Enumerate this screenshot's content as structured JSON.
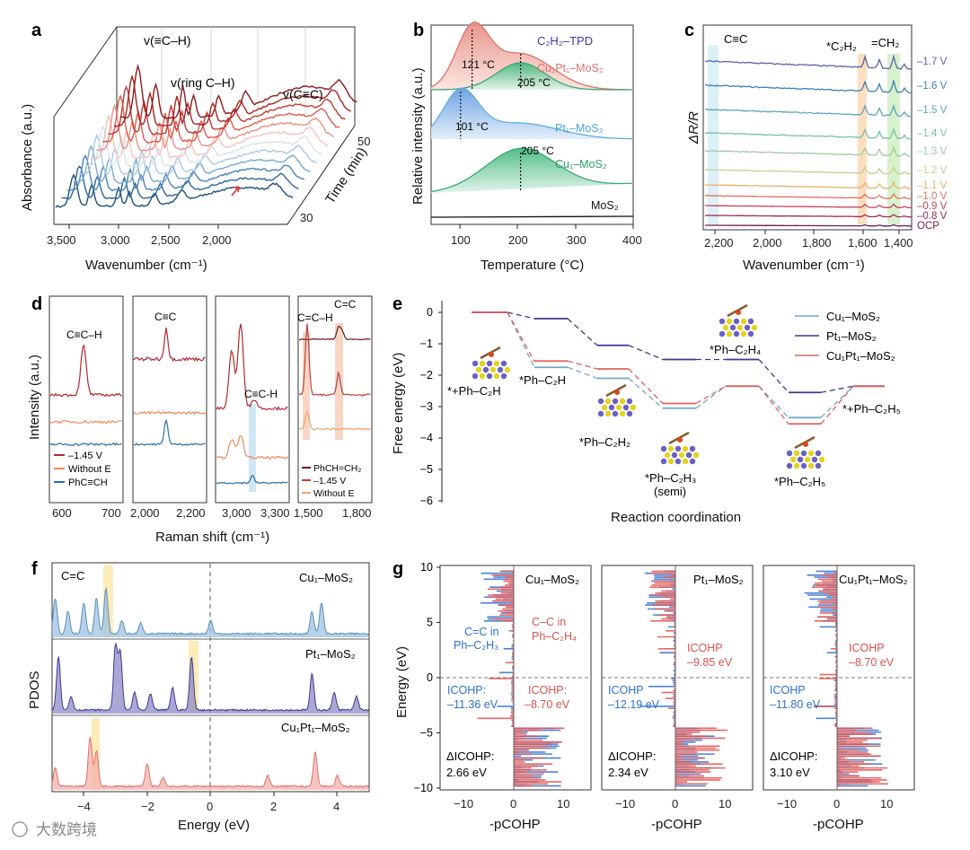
{
  "watermark": "大数跨境",
  "panels": {
    "a": {
      "letter": "a",
      "ylabel": "Absorbance (a.u.)",
      "xlabel": "Wavenumber (cm⁻¹)",
      "xticks": [
        "3,500",
        "3,000",
        "2,500",
        "2,000"
      ],
      "time_label": "Time (min)",
      "time_ticks": [
        "50",
        "30"
      ],
      "annotations": [
        "v(≡C–H)",
        "v(ring C–H)",
        "v(C≡C)"
      ]
    },
    "b": {
      "letter": "b",
      "title": "C₂H₂–TPD",
      "ylabel": "Relative intensity (a.u.)",
      "xlabel": "Temperature (°C)",
      "xticks": [
        "100",
        "200",
        "300",
        "400"
      ],
      "series_labels": [
        "Cu₁Pt₁–MoS₂",
        "Pt₁–MoS₂",
        "Cu₁–MoS₂",
        "MoS₂"
      ],
      "peak_labels": [
        "121 °C",
        "205 °C",
        "101 °C",
        "205 °C"
      ]
    },
    "c": {
      "letter": "c",
      "ylabel": "ΔR/R",
      "xlabel": "Wavenumber (cm⁻¹)",
      "xticks": [
        "2,200",
        "2,000",
        "1,800",
        "1,600",
        "1,400"
      ],
      "band_labels": [
        "C≡C",
        "*C₂H₂",
        "=CH₂"
      ],
      "potentials": [
        "–1.7 V",
        "–1.6 V",
        "–1.5 V",
        "–1.4 V",
        "–1.3 V",
        "–1.2 V",
        "–1.1 V",
        "–1.0 V",
        "–0.9 V",
        "–0.8 V",
        "OCP"
      ]
    },
    "d": {
      "letter": "d",
      "ylabel": "Intensity (a.u.)",
      "xlabel": "Raman shift (cm⁻¹)",
      "xticks1": [
        "600",
        "700"
      ],
      "xticks2": [
        "2,000",
        "2,200"
      ],
      "xticks3": [
        "3,000",
        "3,300"
      ],
      "xticks4": [
        "1,500",
        "1,800"
      ],
      "peak_labels": [
        "C≡C–H",
        "C≡C",
        "C≡C-H",
        "C=C–H",
        "C=C"
      ],
      "legend1": [
        "–1.45 V",
        "Without E",
        "PhC≡CH"
      ],
      "legend4": [
        "PhCH=CH₂",
        "–1.45 V",
        "Without E"
      ]
    },
    "e": {
      "letter": "e",
      "ylabel": "Free energy (eV)",
      "xlabel": "Reaction coordination",
      "yticks": [
        "0",
        "−1",
        "−2",
        "−3",
        "−4",
        "−5",
        "−6"
      ],
      "legend": [
        "Cu₁–MoS₂",
        "Pt₁–MoS₂",
        "Cu₁Pt₁–MoS₂"
      ],
      "state_labels": [
        "*+Ph–C₂H",
        "*Ph–C₂H",
        "*Ph–C₂H₂",
        "*Ph–C₂H₃",
        "(semi)",
        "*Ph–C₂H₄",
        "*Ph–C₂H₅",
        "*+Ph–C₂H₅"
      ]
    },
    "f": {
      "letter": "f",
      "ylabel": "PDOS",
      "xlabel": "Energy (eV)",
      "xticks": [
        "−4",
        "−2",
        "0",
        "2",
        "4"
      ],
      "band_label": "C=C",
      "series_labels": [
        "Cu₁–MoS₂",
        "Pt₁–MoS₂",
        "Cu₁Pt₁–MoS₂"
      ]
    },
    "g": {
      "letter": "g",
      "ylabel": "Energy (eV)",
      "xlabel": "-pCOHP",
      "yticks": [
        "10",
        "5",
        "0",
        "−5",
        "−10"
      ],
      "xticks": [
        "−10",
        "0",
        "10"
      ],
      "sub": [
        {
          "title": "Cu₁–MoS₂",
          "blue_label": "C=C in",
          "blue_label2": "Ph–C₂H₃",
          "red_label": "C–C in",
          "red_label2": "Ph–C₂H₄",
          "icohp_blue": "ICOHP:",
          "icohp_blue_val": "–11.36 eV",
          "icohp_red": "ICOHP:",
          "icohp_red_val": "–8.70 eV",
          "delta": "ΔICOHP:",
          "delta_val": "2.66 eV"
        },
        {
          "title": "Pt₁–MoS₂",
          "icohp_blue": "ICOHP",
          "icohp_blue_val": "–12.19 eV",
          "icohp_red": "ICOHP",
          "icohp_red_val": "–9.85 eV",
          "delta": "ΔICOHP:",
          "delta_val": "2.34 eV"
        },
        {
          "title": "Cu₁Pt₁–MoS₂",
          "icohp_blue": "ICOHP",
          "icohp_blue_val": "–11.80 eV",
          "icohp_red": "ICOHP",
          "icohp_red_val": "–8.70 eV",
          "delta": "ΔICOHP:",
          "delta_val": "3.10 eV"
        }
      ]
    }
  },
  "colors": {
    "red_dark": "#9b1c1c",
    "red": "#e15759",
    "salmon": "#f4a582",
    "blue": "#2c7bb6",
    "lightblue": "#6baed6",
    "navy": "#3f3f9a",
    "green": "#2ca25f",
    "teal": "#5ab4ac",
    "peach": "#f6c9a8",
    "yellow": "#fdebb8"
  },
  "chart_data": [
    {
      "panel": "b",
      "type": "line",
      "xlabel": "Temperature (°C)",
      "ylabel": "Relative intensity (a.u.)",
      "xlim": [
        50,
        400
      ],
      "series": [
        {
          "name": "Cu₁Pt₁–MoS₂",
          "peaks": [
            121,
            205
          ]
        },
        {
          "name": "Pt₁–MoS₂",
          "peaks": [
            101
          ]
        },
        {
          "name": "Cu₁–MoS₂",
          "peaks": [
            205
          ]
        },
        {
          "name": "MoS₂",
          "peaks": []
        }
      ]
    },
    {
      "panel": "e",
      "type": "line",
      "xlabel": "Reaction coordination",
      "ylabel": "Free energy (eV)",
      "ylim": [
        -6,
        0.5
      ],
      "categories": [
        "*+Ph–C₂H",
        "*Ph–C₂H",
        "*Ph–C₂H₂",
        "*Ph–C₂H₃",
        "*Ph–C₂H₄",
        "*Ph–C₂H₅",
        "*+Ph–C₂H₅"
      ],
      "series": [
        {
          "name": "Cu₁–MoS₂",
          "values": [
            0,
            -1.75,
            -2.1,
            -3.05,
            -2.35,
            -3.35,
            -2.35
          ]
        },
        {
          "name": "Pt₁–MoS₂",
          "values": [
            0,
            -0.2,
            -1.05,
            -1.5,
            -1.5,
            -2.55,
            -2.35
          ]
        },
        {
          "name": "Cu₁Pt₁–MoS₂",
          "values": [
            0,
            -1.55,
            -1.8,
            -2.9,
            -2.35,
            -3.55,
            -2.35
          ]
        }
      ]
    },
    {
      "panel": "f",
      "type": "area",
      "xlabel": "Energy (eV)",
      "ylabel": "PDOS",
      "xlim": [
        -5,
        5
      ],
      "series": [
        {
          "name": "Cu₁–MoS₂",
          "peaks": [
            -4.9,
            -4.5,
            -4.0,
            -3.6,
            -3.3,
            -2.8,
            -2.2,
            0,
            3.2,
            3.5
          ]
        },
        {
          "name": "Pt₁–MoS₂",
          "peaks": [
            -4.6,
            -4.2,
            -3.0,
            -2.8,
            -2.4,
            -1.2,
            -0.6,
            3.2,
            3.9
          ]
        },
        {
          "name": "Cu₁Pt₁–MoS₂",
          "peaks": [
            -4.9,
            -3.8,
            -3.6,
            -2.0,
            1.8,
            3.3,
            4.0
          ]
        }
      ]
    },
    {
      "panel": "g",
      "type": "bar",
      "xlabel": "-pCOHP",
      "ylabel": "Energy (eV)",
      "ylim": [
        -10,
        10
      ],
      "xlim": [
        -15,
        15
      ],
      "series": [
        {
          "name": "Cu₁–MoS₂",
          "icohp": [
            -11.36,
            -8.7
          ],
          "delta_icohp": 2.66
        },
        {
          "name": "Pt₁–MoS₂",
          "icohp": [
            -12.19,
            -9.85
          ],
          "delta_icohp": 2.34
        },
        {
          "name": "Cu₁Pt₁–MoS₂",
          "icohp": [
            -11.8,
            -8.7
          ],
          "delta_icohp": 3.1
        }
      ]
    }
  ]
}
